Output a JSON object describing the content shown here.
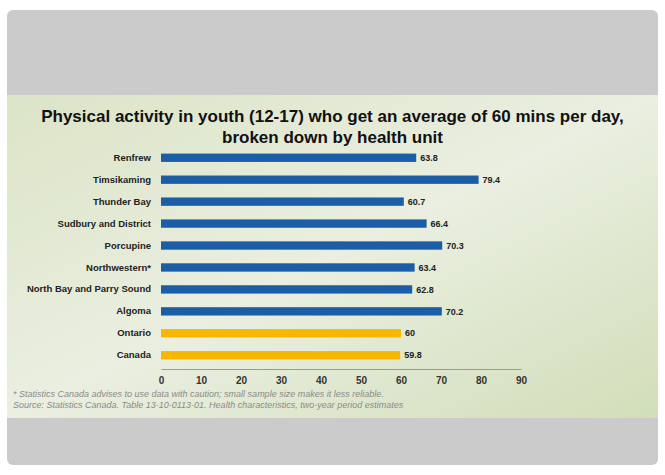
{
  "chart_data": {
    "type": "bar",
    "orientation": "horizontal",
    "title": "Physical activity in youth (12-17) who get an average of 60 mins per day, broken down by health unit",
    "categories": [
      "Renfrew",
      "Timsikaming",
      "Thunder Bay",
      "Sudbury and District",
      "Porcupine",
      "Northwestern*",
      "North Bay and Parry Sound",
      "Algoma",
      "Ontario",
      "Canada"
    ],
    "values": [
      63.8,
      79.4,
      60.7,
      66.4,
      70.3,
      63.4,
      62.8,
      70.2,
      60,
      59.8
    ],
    "colors": [
      "#1b5ea6",
      "#1b5ea6",
      "#1b5ea6",
      "#1b5ea6",
      "#1b5ea6",
      "#1b5ea6",
      "#1b5ea6",
      "#1b5ea6",
      "#f5b700",
      "#f5b700"
    ],
    "xlim": [
      0,
      90
    ],
    "xticks": [
      0,
      10,
      20,
      30,
      40,
      50,
      60,
      70,
      80,
      90
    ],
    "grid": false,
    "data_labels": true,
    "annotations": [
      "* Statistics Canada advises to use data with caution; small sample size makes it less reliable.",
      "Source: Statistics Canada. Table 13-10-0113-01. Health characteristics, two-year period estimates"
    ]
  }
}
